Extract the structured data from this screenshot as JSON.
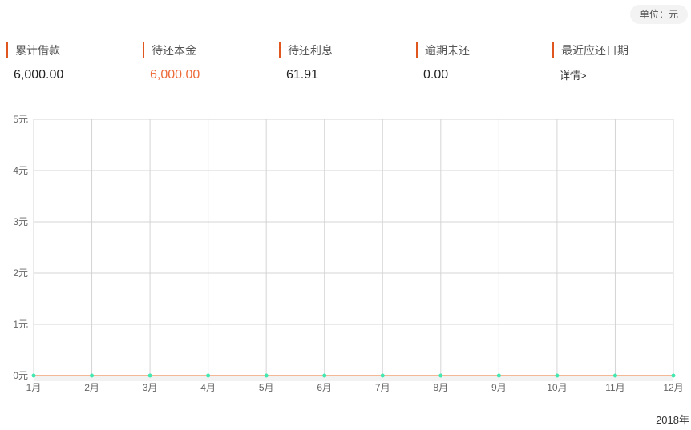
{
  "unit_label": "单位：元",
  "stats": [
    {
      "label": "累计借款",
      "value": "6,000.00",
      "accent": false
    },
    {
      "label": "待还本金",
      "value": "6,000.00",
      "accent": true
    },
    {
      "label": "待还利息",
      "value": "61.91",
      "accent": false
    },
    {
      "label": "逾期未还",
      "value": "0.00",
      "accent": false
    },
    {
      "label": "最近应还日期",
      "link": "详情>"
    }
  ],
  "colors": {
    "accent": "#e0561f",
    "line": "#f0a070",
    "point": "#43e8b0",
    "grid": "#d4d4d4"
  },
  "chart_data": {
    "type": "line",
    "categories": [
      "1月",
      "2月",
      "3月",
      "4月",
      "5月",
      "6月",
      "7月",
      "8月",
      "9月",
      "10月",
      "11月",
      "12月"
    ],
    "series": [
      {
        "values": [
          0,
          0,
          0,
          0,
          0,
          0,
          0,
          0,
          0,
          0,
          0,
          0
        ]
      }
    ],
    "y_ticks": [
      "0元",
      "1元",
      "2元",
      "3元",
      "4元",
      "5元"
    ],
    "ylim": [
      0,
      5
    ],
    "grid": true,
    "xlabel": "2018年"
  }
}
